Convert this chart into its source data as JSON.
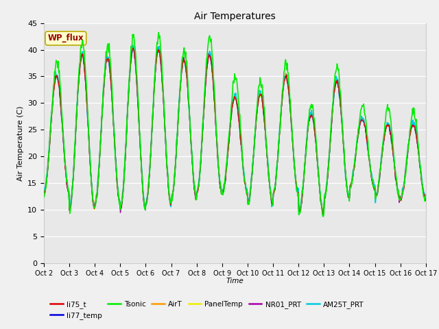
{
  "title": "Air Temperatures",
  "xlabel": "Time",
  "ylabel": "Air Temperature (C)",
  "ylim": [
    0,
    45
  ],
  "xlim": [
    0,
    15
  ],
  "fig_bg": "#f0f0f0",
  "plot_bg": "#e8e8e8",
  "grid_color": "#ffffff",
  "series": {
    "li75_t": {
      "color": "#dd0000",
      "lw": 1.0
    },
    "li77_temp": {
      "color": "#0000dd",
      "lw": 1.0
    },
    "Tsonic": {
      "color": "#00ee00",
      "lw": 1.2
    },
    "AirT": {
      "color": "#ff9900",
      "lw": 1.0
    },
    "PanelTemp": {
      "color": "#eeee00",
      "lw": 1.0
    },
    "NR01_PRT": {
      "color": "#aa00aa",
      "lw": 1.0
    },
    "AM25T_PRT": {
      "color": "#00ccdd",
      "lw": 1.3
    }
  },
  "xtick_labels": [
    "Oct 2",
    "Oct 3",
    "Oct 4",
    "Oct 5",
    "Oct 6",
    "Oct 7",
    "Oct 8",
    "Oct 9",
    "Oct 10",
    "Oct 11",
    "Oct 12",
    "Oct 13",
    "Oct 14",
    "Oct 15",
    "Oct 16",
    "Oct 17"
  ],
  "ytick_vals": [
    0,
    5,
    10,
    15,
    20,
    25,
    30,
    35,
    40,
    45
  ],
  "annotation_text": "WP_flux",
  "annotation_fg": "#990000",
  "annotation_bg": "#ffffcc",
  "annotation_border": "#bbaa00"
}
